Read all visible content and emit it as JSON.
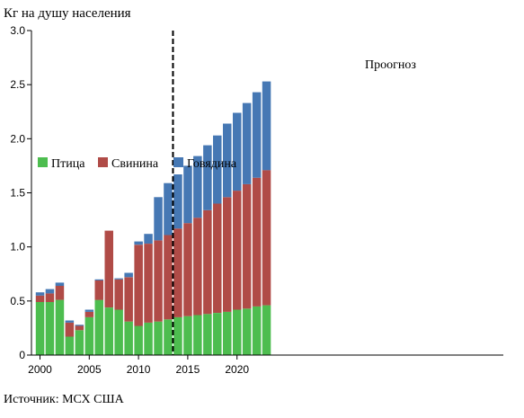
{
  "chart_data": {
    "type": "bar",
    "stacked": true,
    "ylabel": "Кг на душу населения",
    "ylim": [
      0,
      3.0
    ],
    "y_ticks": [
      "0",
      "0.5",
      "1.0",
      "1.5",
      "2.0",
      "2.5",
      "3.0"
    ],
    "x_ticks": [
      "2000",
      "2005",
      "2010",
      "2015",
      "2020"
    ],
    "x_tick_values": [
      2000,
      2005,
      2010,
      2015,
      2020
    ],
    "years": [
      2000,
      2001,
      2002,
      2003,
      2004,
      2005,
      2006,
      2007,
      2008,
      2009,
      2010,
      2011,
      2012,
      2013,
      2014,
      2015,
      2016,
      2017,
      2018,
      2019,
      2020,
      2021,
      2022,
      2023
    ],
    "series": [
      {
        "name": "Птица",
        "color": "#4dbd4f",
        "values": [
          0.49,
          0.49,
          0.51,
          0.17,
          0.23,
          0.35,
          0.51,
          0.44,
          0.42,
          0.31,
          0.27,
          0.3,
          0.31,
          0.33,
          0.35,
          0.36,
          0.37,
          0.38,
          0.39,
          0.4,
          0.42,
          0.43,
          0.45,
          0.46
        ]
      },
      {
        "name": "Свинина",
        "color": "#b04b47",
        "values": [
          0.06,
          0.08,
          0.13,
          0.13,
          0.04,
          0.05,
          0.18,
          0.71,
          0.28,
          0.41,
          0.75,
          0.73,
          0.75,
          0.78,
          0.82,
          0.86,
          0.9,
          0.96,
          1.01,
          1.06,
          1.1,
          1.15,
          1.19,
          1.25
        ]
      },
      {
        "name": "Говядина",
        "color": "#4678b4",
        "values": [
          0.03,
          0.04,
          0.03,
          0.02,
          0.01,
          0.02,
          0.01,
          0.0,
          0.01,
          0.04,
          0.03,
          0.09,
          0.4,
          0.48,
          0.5,
          0.53,
          0.57,
          0.6,
          0.63,
          0.68,
          0.72,
          0.75,
          0.79,
          0.82
        ]
      }
    ],
    "forecast_from_year": 2014,
    "forecast_label": "Проогноз",
    "legend_position": "middle-left",
    "grid": false
  },
  "source": "Источник: МСХ США"
}
